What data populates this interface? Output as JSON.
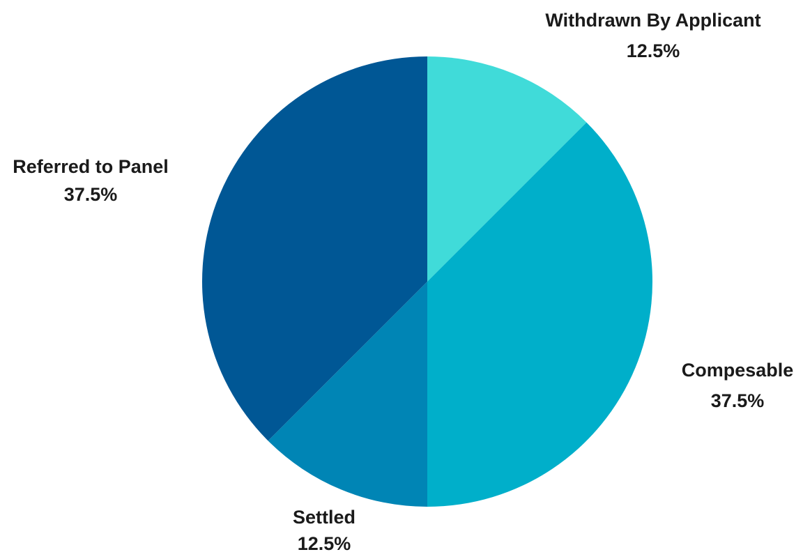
{
  "chart_data": {
    "type": "pie",
    "slices": [
      {
        "label": "Withdrawn By Applicant",
        "value": 12.5,
        "value_label": "12.5%",
        "color": "#40DBD9"
      },
      {
        "label": "Compesable",
        "value": 37.5,
        "value_label": "37.5%",
        "color": "#00AFCA"
      },
      {
        "label": "Settled",
        "value": 12.5,
        "value_label": "12.5%",
        "color": "#0085B5"
      },
      {
        "label": "Referred to Panel",
        "value": 37.5,
        "value_label": "37.5%",
        "color": "#005795"
      }
    ],
    "start_angle": "top",
    "direction": "clockwise",
    "legend": "none",
    "labels": "outside"
  }
}
